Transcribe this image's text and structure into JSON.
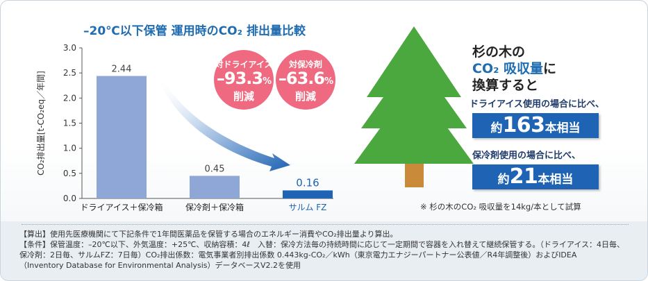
{
  "chart_data": {
    "type": "bar",
    "title": "–20℃以下保管  運用時のCO₂ 排出量比較",
    "ylabel": "CO₂排出量[t-CO₂eq／年間]",
    "categories": [
      "ドライアイス＋保冷箱",
      "保冷剤＋保冷箱",
      "サルム FZ"
    ],
    "values": [
      2.44,
      0.45,
      0.16
    ],
    "data_labels": [
      "2.44",
      "0.45",
      "0.16"
    ],
    "ylim": [
      0,
      3.0
    ],
    "yticks": [
      "0.0",
      "0.5",
      "1.0",
      "1.5",
      "2.0",
      "2.5",
      "3.0"
    ],
    "grid": false,
    "colors": {
      "bar": "#8ea7d6",
      "highlight_bar": "#1f63b4",
      "highlight_label": "#1f63b4"
    }
  },
  "bubbles": [
    {
      "line1": "対ドライアイス",
      "value": "–93.3",
      "unit": "%",
      "line3": "削減"
    },
    {
      "line1": "対保冷剤",
      "value": "–63.6",
      "unit": "%",
      "line3": "削減"
    }
  ],
  "right": {
    "title_line1": "杉の木の",
    "title_line2": "CO₂ 吸収量",
    "title_line2_suffix": "に",
    "title_line3": "換算すると",
    "label1": "ドライアイス使用の場合に比べ、",
    "box1_prefix": "約",
    "box1_value": "163",
    "box1_suffix": "本相当",
    "label2": "保冷剤使用の場合に比べ、",
    "box2_prefix": "約",
    "box2_value": "21",
    "box2_suffix": "本相当",
    "note": "※ 杉の木のCO₂ 吸収量を14kg/本として試算"
  },
  "notes": [
    "【算出】使用先医療機関にて下記条件で1年間医薬品を保管する場合のエネルギー消費やCO₂排出量より算出。",
    "【条件】保管温度：–20℃以下、外気温度：+25℃、収納容積：4ℓ　入替：保冷方法毎の持続時間に応じて一定期間で容器を入れ替えて継続保管する。（ドライアイス：4日毎、",
    "保冷剤：2日毎、サルムFZ：7日毎）CO₂排出係数：電気事業者別排出係数 0.443kg-CO₂／kWh（東京電力エナジーパートナー公表値／R4年調整後）およびIDEA",
    "（Inventory Database for Environmental Analysis）データベースV2.2を使用"
  ],
  "colors": {
    "accent": "#1f6cb0",
    "bubble": "#ef6a80",
    "tree_green": "#4aa83e",
    "trunk": "#c98a3a"
  }
}
